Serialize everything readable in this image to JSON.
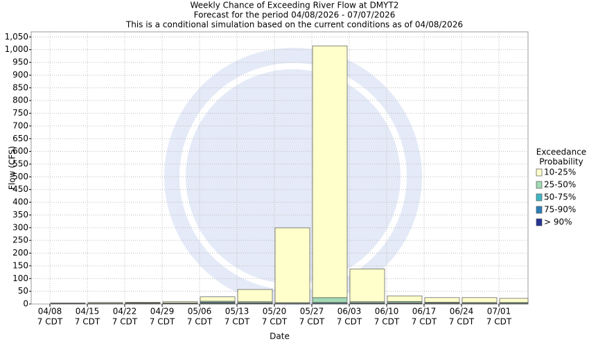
{
  "chart_data": {
    "type": "stacked-bar",
    "title": [
      "Weekly Chance of Exceeding River Flow at DMYT2",
      "Forecast for the period 04/08/2026 - 07/07/2026",
      "This is a conditional simulation based on the current conditions as of 04/08/2026"
    ],
    "x_label": "Date",
    "y_label": "Flow (CFS)",
    "categories": [
      "04/08",
      "04/15",
      "04/22",
      "04/29",
      "05/06",
      "05/13",
      "05/20",
      "05/27",
      "06/03",
      "06/10",
      "06/17",
      "06/24",
      "07/01"
    ],
    "tick_sublabel": "7 CDT",
    "legend_title": [
      "Exceedance",
      "Probability"
    ],
    "series": [
      {
        "name": "10-25%",
        "color": "#ffffcc",
        "values": [
          1,
          3,
          2.5,
          4.5,
          17,
          48,
          294,
          990,
          129,
          22,
          18,
          19,
          16
        ]
      },
      {
        "name": "25-50%",
        "color": "#a1dab4",
        "values": [
          1,
          1,
          2,
          2,
          4,
          4,
          3,
          19,
          4,
          5,
          3,
          3,
          3
        ]
      },
      {
        "name": "50-75%",
        "color": "#41b6c4",
        "values": [
          0.5,
          0.5,
          1,
          1,
          3,
          2,
          1,
          3,
          2,
          2,
          1,
          1,
          1
        ]
      },
      {
        "name": "75-90%",
        "color": "#2c7fb8",
        "values": [
          0.5,
          0.5,
          0.5,
          0.5,
          2,
          1,
          0.5,
          1,
          1,
          1,
          1,
          1,
          1
        ]
      },
      {
        "name": "> 90%",
        "color": "#253494",
        "values": [
          1,
          1,
          1,
          1,
          2,
          2,
          1,
          2,
          2,
          2,
          2,
          1,
          1
        ]
      }
    ],
    "ylim": [
      0,
      1070
    ],
    "yticks": [
      0,
      50,
      100,
      150,
      200,
      250,
      300,
      350,
      400,
      450,
      500,
      550,
      600,
      650,
      700,
      750,
      800,
      850,
      900,
      950,
      {
        "value": 1000,
        "label": "1,000"
      },
      {
        "value": 1050,
        "label": "1,050"
      }
    ],
    "grid": true
  }
}
